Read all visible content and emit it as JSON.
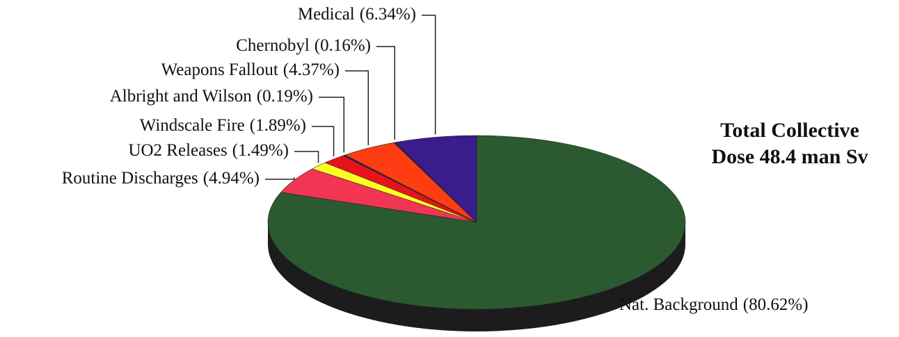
{
  "chart_data": {
    "type": "pie3d",
    "title": [
      "Total Collective",
      "Dose 48.4 man Sv"
    ],
    "categories": [
      "Medical",
      "Chernobyl",
      "Weapons Fallout",
      "Albright and Wilson",
      "Windscale Fire",
      "UO2 Releases",
      "Routine Discharges",
      "Nat. Background"
    ],
    "values": [
      6.34,
      0.16,
      4.37,
      0.19,
      1.89,
      1.49,
      4.94,
      80.62
    ],
    "value_labels": [
      "(6.34%)",
      "(0.16%)",
      "(4.37%)",
      "(0.19%)",
      "(1.89%)",
      "(1.49%)",
      "(4.94%)",
      "(80.62%)"
    ],
    "colors": [
      "#3b1c8c",
      "#23204f",
      "#ff3d12",
      "#2e2060",
      "#e8121c",
      "#ffff22",
      "#f23553",
      "#2b5a31"
    ]
  }
}
